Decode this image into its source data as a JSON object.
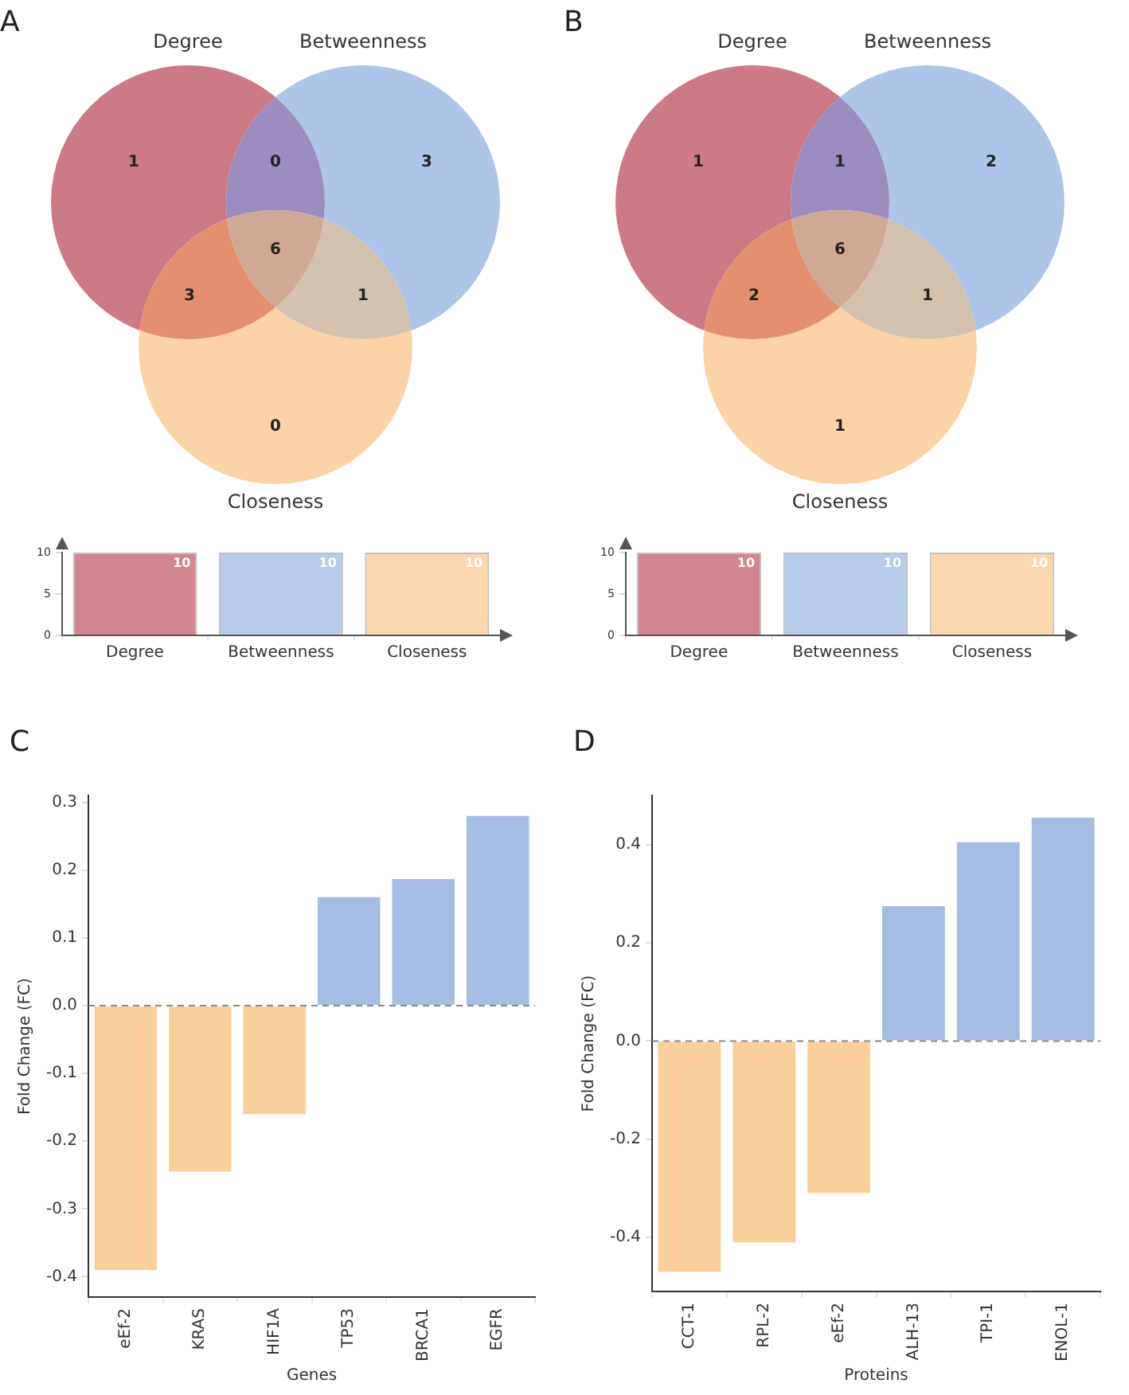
{
  "chart_data": [
    {
      "type": "other",
      "title": "A",
      "annotations": [
        "Degree",
        "Betweenness",
        "Closeness",
        "1",
        "3",
        "0",
        "0",
        "3",
        "1",
        "6"
      ],
      "colors": [
        "#cc7a86",
        "#adc5e8",
        "#fcd3a6",
        "#9c8cbf",
        "#e4906f",
        "#d4c2b0",
        "#cfa896"
      ]
    },
    {
      "type": "other",
      "title": "B",
      "annotations": [
        "Degree",
        "Betweenness",
        "Closeness",
        "1",
        "2",
        "1",
        "1",
        "2",
        "1",
        "6"
      ],
      "colors": [
        "#cc7a86",
        "#adc5e8",
        "#fcd3a6",
        "#9c8cbf",
        "#e4906f",
        "#d4c2b0",
        "#cfa896"
      ]
    },
    {
      "type": "bar",
      "categories": [
        "Degree",
        "Betweenness",
        "Closeness"
      ],
      "values": [
        10,
        10,
        10
      ],
      "colors": [
        "#d0858f",
        "#b7cbea",
        "#fcd6ad"
      ],
      "ylim": [
        0,
        10
      ],
      "yticks": [
        0,
        5,
        10
      ],
      "data_labels": true
    },
    {
      "type": "bar",
      "categories": [
        "Degree",
        "Betweenness",
        "Closeness"
      ],
      "values": [
        10,
        10,
        10
      ],
      "colors": [
        "#d0858f",
        "#b7cbea",
        "#fcd6ad"
      ],
      "ylim": [
        0,
        10
      ],
      "yticks": [
        0,
        5,
        10
      ],
      "data_labels": true
    },
    {
      "type": "bar",
      "title": "C",
      "xlabel": "Genes",
      "ylabel": "Fold Change (FC)",
      "categories": [
        "eEf-2",
        "KRAS",
        "HIF1A",
        "TP53",
        "BRCA1",
        "EGFR"
      ],
      "values": [
        -0.39,
        -0.245,
        -0.16,
        0.16,
        0.187,
        0.28
      ],
      "colors": [
        "#fbcf9a",
        "#fbcf9a",
        "#fbcf9a",
        "#a5bde3",
        "#a5bde3",
        "#a5bde3"
      ],
      "ylim": [
        -0.43,
        0.31
      ],
      "yticks": [
        -0.4,
        -0.3,
        -0.2,
        -0.1,
        {
          "value": 0,
          "label": "0.0"
        },
        0.1,
        0.2,
        0.3
      ],
      "ref_lines": [
        {
          "axis": "y",
          "value": 0,
          "line_style": "dashed",
          "color": "#888888"
        }
      ]
    },
    {
      "type": "bar",
      "title": "D",
      "xlabel": "Proteins",
      "ylabel": "Fold Change (FC)",
      "categories": [
        "CCT-1",
        "RPL-2",
        "eEf-2",
        "ALH-13",
        "TPI-1",
        "ENOL-1"
      ],
      "values": [
        -0.47,
        -0.41,
        -0.31,
        0.275,
        0.405,
        0.455
      ],
      "colors": [
        "#fbcf9a",
        "#fbcf9a",
        "#fbcf9a",
        "#a5bde3",
        "#a5bde3",
        "#a5bde3"
      ],
      "ylim": [
        -0.51,
        0.5
      ],
      "yticks": [
        -0.4,
        -0.2,
        {
          "value": 0,
          "label": "0.0"
        },
        0.2,
        0.4
      ],
      "ref_lines": [
        {
          "axis": "y",
          "value": 0,
          "line_style": "dashed",
          "color": "#888888"
        }
      ]
    }
  ]
}
